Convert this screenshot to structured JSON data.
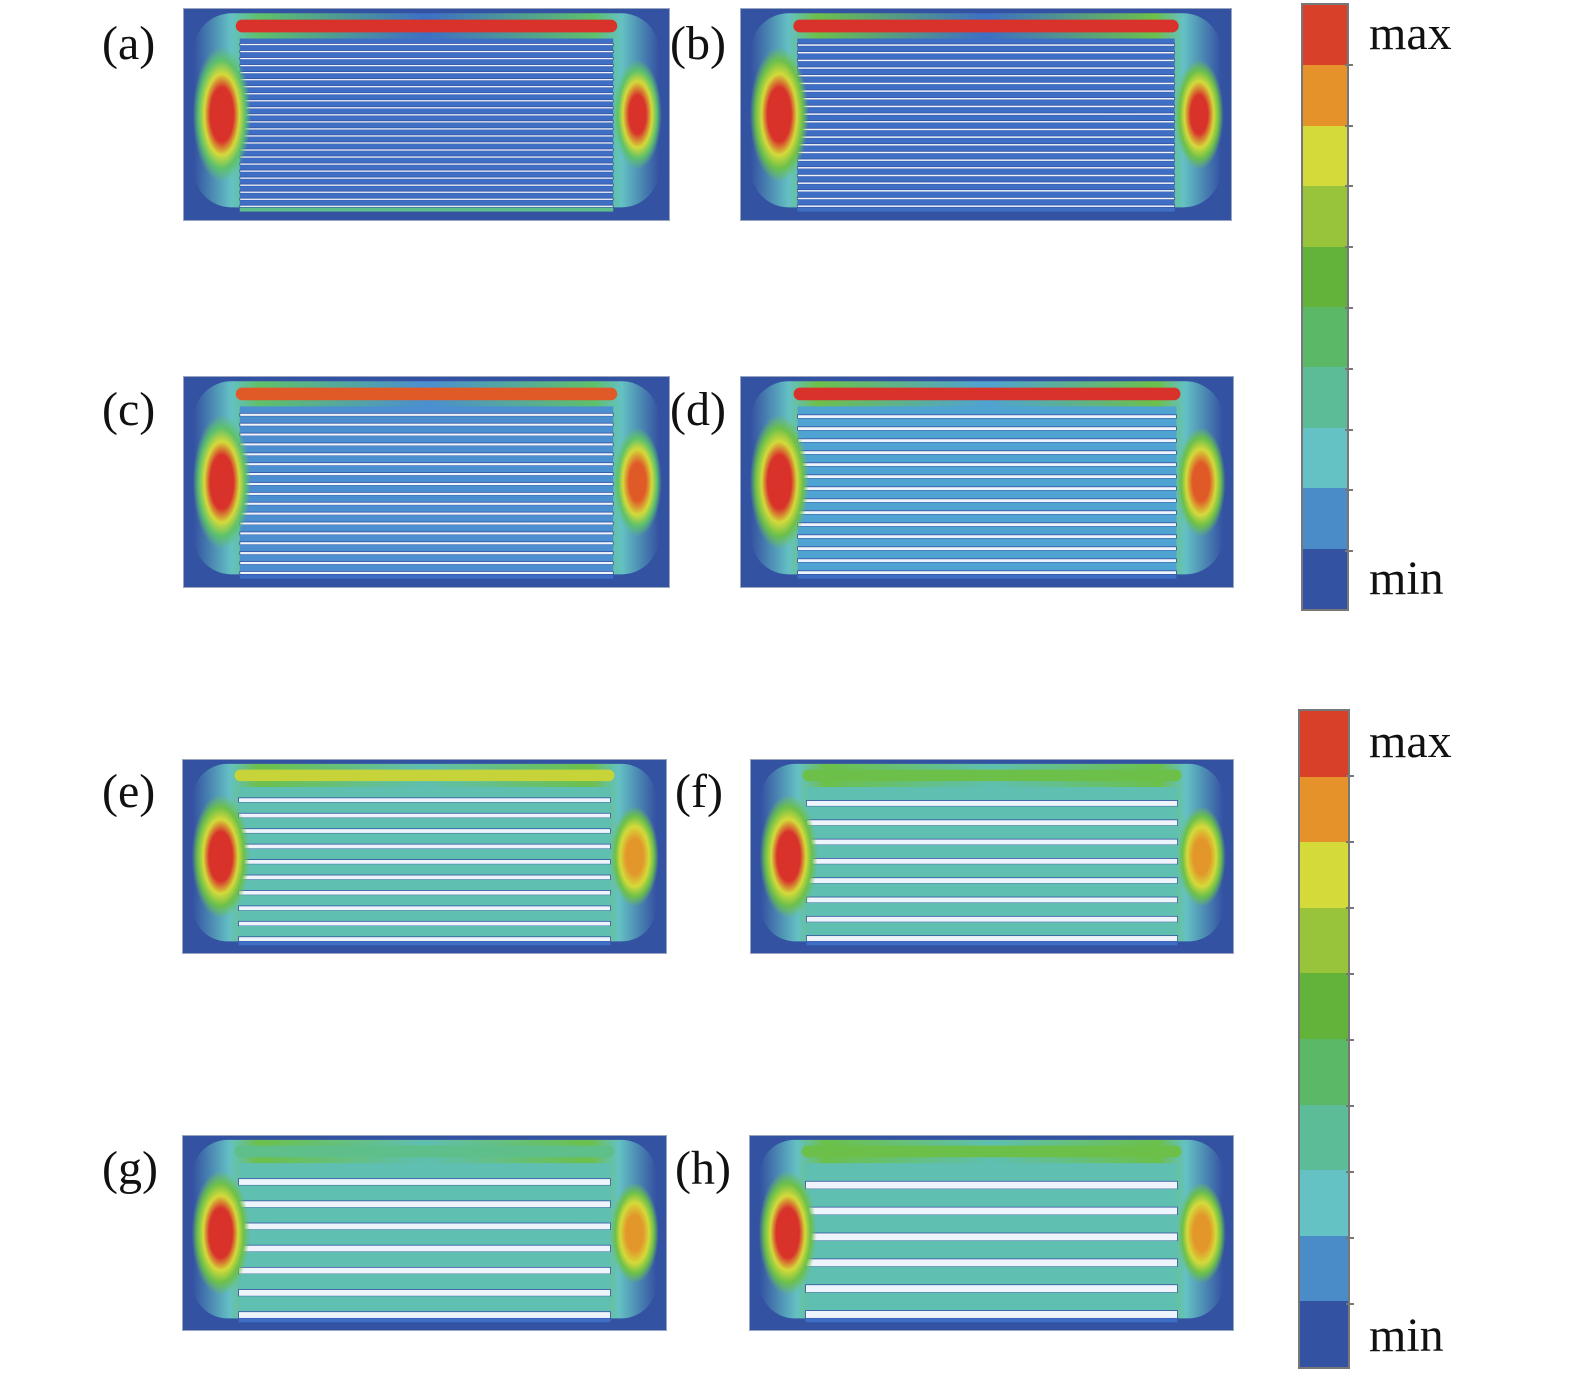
{
  "figure": {
    "panels": [
      {
        "id": "a",
        "label": "(a)",
        "channels": 24,
        "top_band": "#d8322a",
        "bottom_band": "#5fbf8a",
        "left_hot": "#d8322a",
        "right_hot": "#d8322a",
        "fill": "#3e6fc4",
        "glow": "#5ec16a"
      },
      {
        "id": "b",
        "label": "(b)",
        "channels": 22,
        "top_band": "#d8322a",
        "bottom_band": "#3e6fc4",
        "left_hot": "#d8322a",
        "right_hot": "#d8322a",
        "fill": "#3e6fc4",
        "glow": "#6cc04a"
      },
      {
        "id": "c",
        "label": "(c)",
        "channels": 17,
        "top_band": "#e05a28",
        "bottom_band": "#3e6fc4",
        "left_hot": "#d8322a",
        "right_hot": "#e05a28",
        "fill": "#4b8fd0",
        "glow": "#5ec16a"
      },
      {
        "id": "d",
        "label": "(d)",
        "channels": 14,
        "top_band": "#d8322a",
        "bottom_band": "#3e6fc4",
        "left_hot": "#d8322a",
        "right_hot": "#e05a28",
        "fill": "#4fa3d2",
        "glow": "#6cc04a"
      },
      {
        "id": "e",
        "label": "(e)",
        "channels": 10,
        "top_band": "#c6d43a",
        "bottom_band": "#3e6fc4",
        "left_hot": "#d8322a",
        "right_hot": "#e3962a",
        "fill": "#5fbfb0",
        "glow": "#6cc04a"
      },
      {
        "id": "f",
        "label": "(f)",
        "channels": 8,
        "top_band": "#6cc04a",
        "bottom_band": "#3e6fc4",
        "left_hot": "#d8322a",
        "right_hot": "#e3962a",
        "fill": "#5fbfb0",
        "glow": "#6cc04a"
      },
      {
        "id": "g",
        "label": "(g)",
        "channels": 7,
        "top_band": "#5fbf8a",
        "bottom_band": "#3e6fc4",
        "left_hot": "#d8322a",
        "right_hot": "#e3962a",
        "fill": "#5fbfb0",
        "glow": "#6cc04a"
      },
      {
        "id": "h",
        "label": "(h)",
        "channels": 6,
        "top_band": "#6cc04a",
        "bottom_band": "#3e6fc4",
        "left_hot": "#d8322a",
        "right_hot": "#e3962a",
        "fill": "#5fbfb0",
        "glow": "#6cc04a"
      }
    ],
    "colorbars": [
      {
        "id": "top",
        "max_label": "max",
        "min_label": "min"
      },
      {
        "id": "bottom",
        "max_label": "max",
        "min_label": "min"
      }
    ],
    "colorbar_colors": [
      "#d8402a",
      "#e5922a",
      "#d4da3a",
      "#98c43c",
      "#63b33a",
      "#5ab866",
      "#5dbc98",
      "#64c1c4",
      "#4a8cc8",
      "#3452a2"
    ]
  }
}
